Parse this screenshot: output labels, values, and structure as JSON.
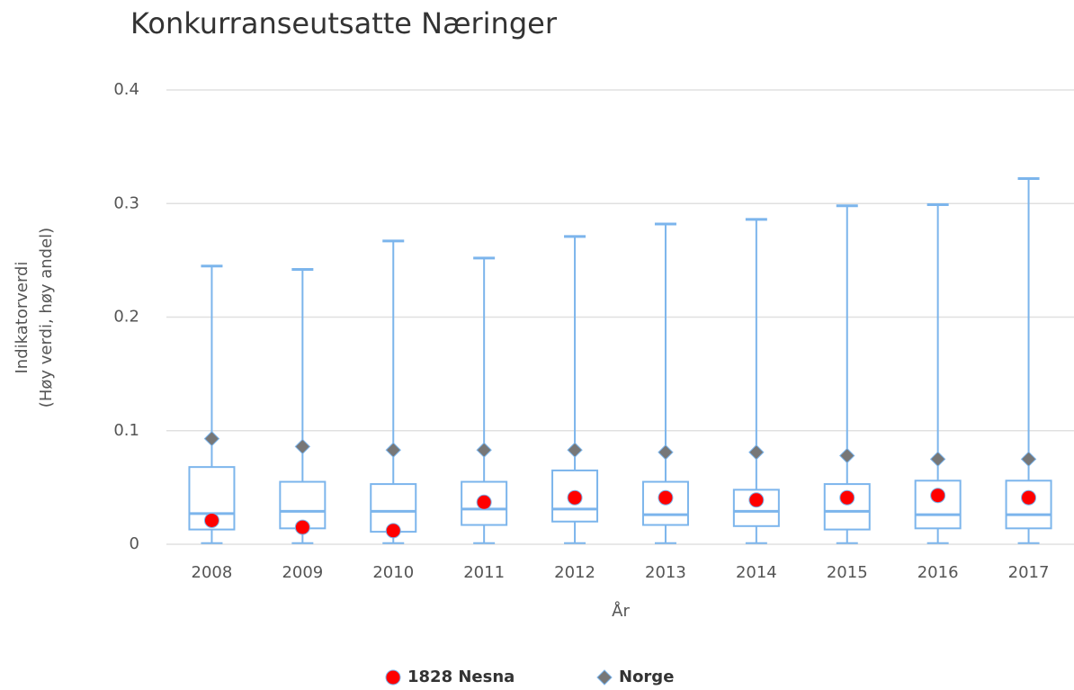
{
  "chart_data": {
    "type": "box",
    "title": "Konkurranseutsatte Næringer",
    "x_label": "År",
    "y_label": [
      "Indikatorverdi",
      "(Høy verdi, høy andel)"
    ],
    "categories": [
      "2008",
      "2009",
      "2010",
      "2011",
      "2012",
      "2013",
      "2014",
      "2015",
      "2016",
      "2017"
    ],
    "boxes": {
      "color": "#7cb5ec",
      "low": [
        0.001,
        0.001,
        0.001,
        0.001,
        0.001,
        0.001,
        0.001,
        0.001,
        0.001,
        0.001
      ],
      "q1": [
        0.013,
        0.014,
        0.011,
        0.017,
        0.02,
        0.017,
        0.016,
        0.013,
        0.014,
        0.014
      ],
      "median": [
        0.027,
        0.029,
        0.029,
        0.031,
        0.031,
        0.026,
        0.029,
        0.029,
        0.026,
        0.026
      ],
      "q3": [
        0.068,
        0.055,
        0.053,
        0.055,
        0.065,
        0.055,
        0.048,
        0.053,
        0.056,
        0.056
      ],
      "high": [
        0.245,
        0.242,
        0.267,
        0.252,
        0.271,
        0.282,
        0.286,
        0.298,
        0.299,
        0.322
      ]
    },
    "series": [
      {
        "name": "1828 Nesna",
        "color": "#ff0000",
        "marker": "circle",
        "values": [
          0.021,
          0.015,
          0.012,
          0.037,
          0.041,
          0.041,
          0.039,
          0.041,
          0.043,
          0.041
        ]
      },
      {
        "name": "Norge",
        "color": "#777777",
        "marker": "diamond",
        "values": [
          0.093,
          0.086,
          0.083,
          0.083,
          0.083,
          0.081,
          0.081,
          0.078,
          0.075,
          0.075
        ]
      }
    ],
    "ylim": [
      0,
      0.4
    ],
    "yticks": [
      0,
      0.1,
      0.2,
      0.3,
      0.4
    ],
    "grid": true,
    "legend": "bottom"
  }
}
